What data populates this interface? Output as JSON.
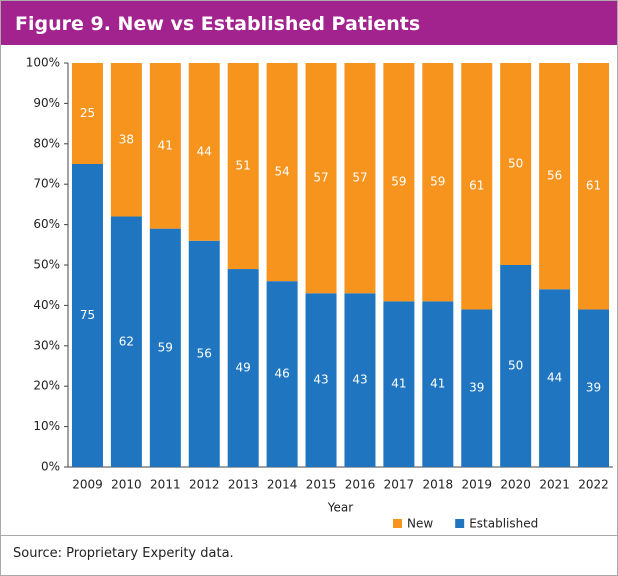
{
  "chart_data": {
    "type": "stacked_bar",
    "title": "Figure 9. New vs Established Patients",
    "x_label": "Year",
    "categories": [
      "2009",
      "2010",
      "2011",
      "2012",
      "2013",
      "2014",
      "2015",
      "2016",
      "2017",
      "2018",
      "2019",
      "2020",
      "2021",
      "2022"
    ],
    "series": [
      {
        "name": "New",
        "color": "#f7941d",
        "values": [
          25,
          38,
          41,
          44,
          51,
          54,
          57,
          57,
          59,
          59,
          61,
          50,
          56,
          61
        ]
      },
      {
        "name": "Established",
        "color": "#1f75bf",
        "values": [
          75,
          62,
          59,
          56,
          49,
          46,
          43,
          43,
          41,
          41,
          39,
          50,
          44,
          39
        ]
      }
    ],
    "ylim": [
      0,
      100
    ],
    "yticks": [
      {
        "value": 0,
        "label": "0%"
      },
      {
        "value": 10,
        "label": "10%"
      },
      {
        "value": 20,
        "label": "20%"
      },
      {
        "value": 30,
        "label": "30%"
      },
      {
        "value": 40,
        "label": "40%"
      },
      {
        "value": 50,
        "label": "50%"
      },
      {
        "value": 60,
        "label": "60%"
      },
      {
        "value": 70,
        "label": "70%"
      },
      {
        "value": 80,
        "label": "80%"
      },
      {
        "value": 90,
        "label": "90%"
      },
      {
        "value": 100,
        "label": "100%"
      }
    ],
    "legend": "bottom"
  },
  "source": "Source: Proprietary Experity data."
}
